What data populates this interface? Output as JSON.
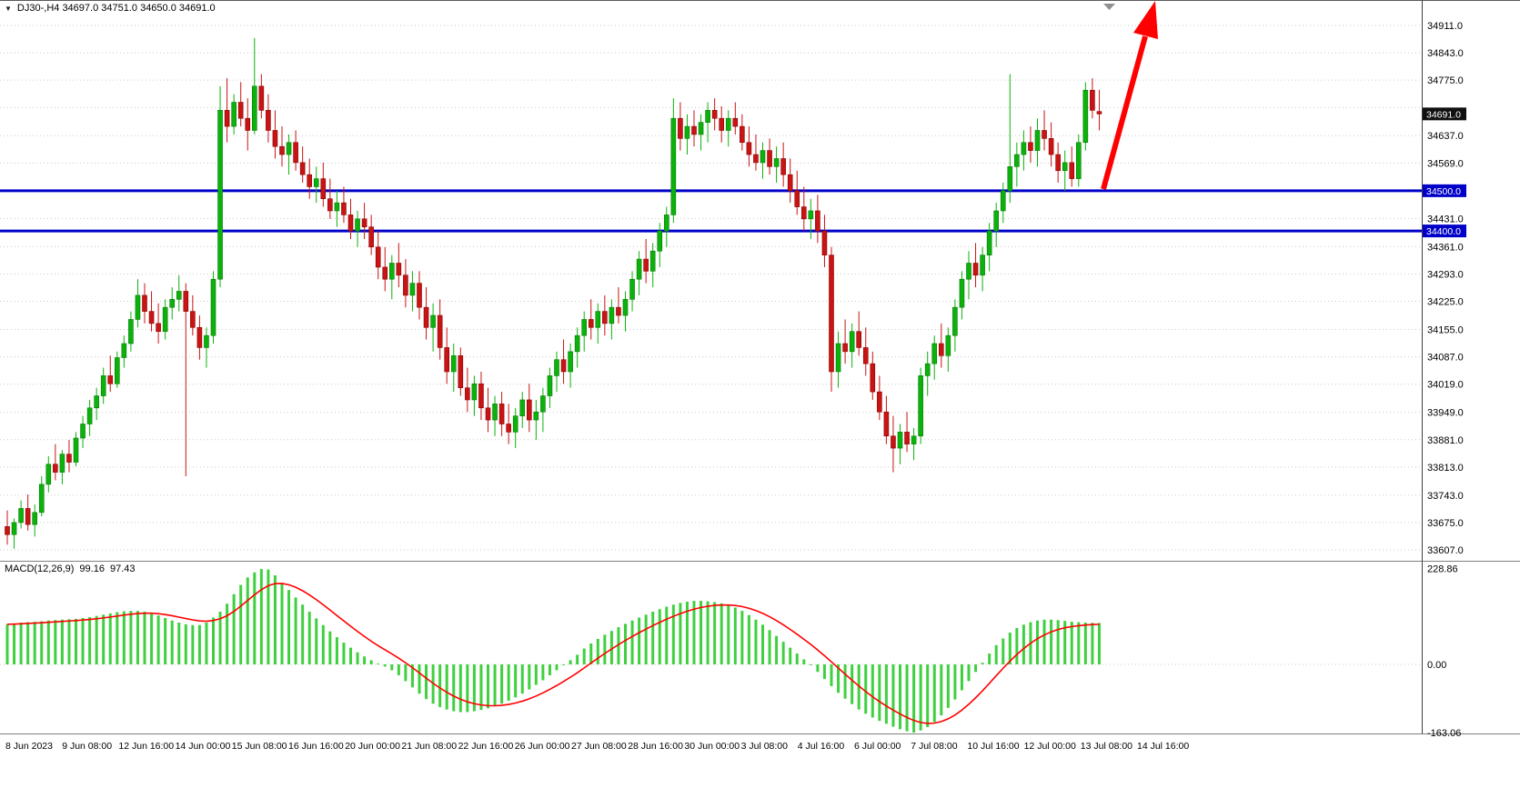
{
  "title": {
    "dropdown": "▼",
    "text": "DJ30-,H4 34697.0 34751.0 34650.0 34691.0"
  },
  "colors": {
    "bull": "#0CB20C",
    "bull_dark": "#067806",
    "bear": "#C81414",
    "bear_dark": "#8B0000",
    "hist": "#3FD03F",
    "signal": "#FF0000",
    "hline": "#0000C8",
    "grid": "#C9C9C9",
    "tag_current_bg": "#101010",
    "arrow": "#FF0000",
    "axis_text": "#000000",
    "separator": "#808080"
  },
  "chart_data": {
    "type": "candlestick",
    "symbol": "DJ30-",
    "timeframe": "H4",
    "ohlc_current": {
      "open": "34697.0",
      "high": "34751.0",
      "low": "34650.0",
      "close": "34691.0"
    },
    "price_axis": {
      "labels": [
        34911,
        34843,
        34775,
        34637,
        34569,
        34431,
        34361,
        34293,
        34225,
        34155,
        34087,
        34019,
        33949,
        33881,
        33813,
        33743,
        33675,
        33607
      ],
      "grid_levels": [
        34911,
        34843,
        34775,
        34707,
        34637,
        34569,
        34431,
        34361,
        34293,
        34225,
        34155,
        34087,
        34019,
        33949,
        33881,
        33813,
        33743,
        33675,
        33607
      ],
      "current_price": 34691,
      "current_tag": "34691.0"
    },
    "hlines": [
      {
        "price": 34500,
        "label": "34500.0"
      },
      {
        "price": 34400,
        "label": "34400.0"
      }
    ],
    "time_axis": [
      "8 Jun 2023",
      "9 Jun 08:00",
      "12 Jun 16:00",
      "14 Jun 00:00",
      "15 Jun 08:00",
      "16 Jun 16:00",
      "20 Jun 00:00",
      "21 Jun 08:00",
      "22 Jun 16:00",
      "26 Jun 00:00",
      "27 Jun 08:00",
      "28 Jun 16:00",
      "30 Jun 00:00",
      "3 Jul 08:00",
      "4 Jul 16:00",
      "6 Jul 00:00",
      "7 Jul 08:00",
      "10 Jul 16:00",
      "12 Jul 00:00",
      "13 Jul 08:00",
      "14 Jul 16:00"
    ],
    "candles": [
      [
        33665,
        33705,
        33620,
        33645
      ],
      [
        33645,
        33685,
        33610,
        33675
      ],
      [
        33675,
        33730,
        33660,
        33710
      ],
      [
        33710,
        33745,
        33655,
        33670
      ],
      [
        33670,
        33720,
        33640,
        33700
      ],
      [
        33700,
        33790,
        33690,
        33770
      ],
      [
        33770,
        33840,
        33750,
        33820
      ],
      [
        33820,
        33870,
        33780,
        33800
      ],
      [
        33800,
        33855,
        33770,
        33845
      ],
      [
        33845,
        33880,
        33800,
        33825
      ],
      [
        33825,
        33900,
        33815,
        33885
      ],
      [
        33885,
        33940,
        33860,
        33920
      ],
      [
        33920,
        33980,
        33890,
        33960
      ],
      [
        33960,
        34010,
        33930,
        33990
      ],
      [
        33990,
        34060,
        33970,
        34040
      ],
      [
        34040,
        34090,
        34000,
        34020
      ],
      [
        34020,
        34100,
        34010,
        34085
      ],
      [
        34085,
        34140,
        34060,
        34120
      ],
      [
        34120,
        34200,
        34100,
        34180
      ],
      [
        34180,
        34280,
        34160,
        34240
      ],
      [
        34240,
        34270,
        34170,
        34200
      ],
      [
        34200,
        34250,
        34150,
        34170
      ],
      [
        34170,
        34220,
        34120,
        34150
      ],
      [
        34150,
        34230,
        34130,
        34210
      ],
      [
        34210,
        34260,
        34180,
        34230
      ],
      [
        34230,
        34290,
        34200,
        34250
      ],
      [
        34250,
        34270,
        33790,
        34200
      ],
      [
        34200,
        34240,
        34140,
        34160
      ],
      [
        34160,
        34190,
        34080,
        34110
      ],
      [
        34110,
        34160,
        34060,
        34140
      ],
      [
        34140,
        34300,
        34120,
        34280
      ],
      [
        34280,
        34760,
        34260,
        34700
      ],
      [
        34700,
        34780,
        34620,
        34660
      ],
      [
        34660,
        34740,
        34640,
        34720
      ],
      [
        34720,
        34770,
        34660,
        34680
      ],
      [
        34680,
        34730,
        34600,
        34650
      ],
      [
        34650,
        34880,
        34640,
        34760
      ],
      [
        34760,
        34790,
        34680,
        34700
      ],
      [
        34700,
        34740,
        34620,
        34650
      ],
      [
        34650,
        34700,
        34580,
        34610
      ],
      [
        34610,
        34660,
        34560,
        34590
      ],
      [
        34590,
        34640,
        34540,
        34620
      ],
      [
        34620,
        34650,
        34550,
        34570
      ],
      [
        34570,
        34610,
        34520,
        34540
      ],
      [
        34540,
        34580,
        34480,
        34510
      ],
      [
        34510,
        34560,
        34470,
        34530
      ],
      [
        34530,
        34570,
        34460,
        34480
      ],
      [
        34480,
        34530,
        34430,
        34450
      ],
      [
        34450,
        34500,
        34410,
        34470
      ],
      [
        34470,
        34510,
        34420,
        34440
      ],
      [
        34440,
        34480,
        34380,
        34400
      ],
      [
        34400,
        34450,
        34360,
        34430
      ],
      [
        34430,
        34470,
        34380,
        34410
      ],
      [
        34410,
        34440,
        34340,
        34360
      ],
      [
        34360,
        34400,
        34280,
        34310
      ],
      [
        34310,
        34360,
        34250,
        34280
      ],
      [
        34280,
        34340,
        34230,
        34320
      ],
      [
        34320,
        34370,
        34260,
        34290
      ],
      [
        34290,
        34330,
        34210,
        34240
      ],
      [
        34240,
        34300,
        34200,
        34270
      ],
      [
        34270,
        34300,
        34180,
        34210
      ],
      [
        34210,
        34260,
        34130,
        34160
      ],
      [
        34160,
        34220,
        34100,
        34190
      ],
      [
        34190,
        34230,
        34080,
        34110
      ],
      [
        34110,
        34160,
        34020,
        34050
      ],
      [
        34050,
        34120,
        34000,
        34090
      ],
      [
        34090,
        34110,
        33990,
        34010
      ],
      [
        34010,
        34060,
        33950,
        33980
      ],
      [
        33980,
        34040,
        33940,
        34020
      ],
      [
        34020,
        34050,
        33930,
        33960
      ],
      [
        33960,
        34010,
        33900,
        33930
      ],
      [
        33930,
        33990,
        33890,
        33970
      ],
      [
        33970,
        34000,
        33890,
        33920
      ],
      [
        33920,
        33970,
        33870,
        33900
      ],
      [
        33900,
        33960,
        33860,
        33940
      ],
      [
        33940,
        34000,
        33910,
        33980
      ],
      [
        33980,
        34020,
        33900,
        33930
      ],
      [
        33930,
        33980,
        33880,
        33950
      ],
      [
        33950,
        34010,
        33900,
        33990
      ],
      [
        33990,
        34060,
        33960,
        34040
      ],
      [
        34040,
        34100,
        34000,
        34080
      ],
      [
        34080,
        34130,
        34020,
        34050
      ],
      [
        34050,
        34120,
        34010,
        34100
      ],
      [
        34100,
        34160,
        34060,
        34140
      ],
      [
        34140,
        34200,
        34100,
        34180
      ],
      [
        34180,
        34230,
        34130,
        34160
      ],
      [
        34160,
        34220,
        34120,
        34200
      ],
      [
        34200,
        34240,
        34140,
        34170
      ],
      [
        34170,
        34230,
        34130,
        34210
      ],
      [
        34210,
        34260,
        34170,
        34190
      ],
      [
        34190,
        34250,
        34150,
        34230
      ],
      [
        34230,
        34300,
        34200,
        34280
      ],
      [
        34280,
        34350,
        34240,
        34330
      ],
      [
        34330,
        34380,
        34270,
        34300
      ],
      [
        34300,
        34370,
        34260,
        34350
      ],
      [
        34350,
        34420,
        34310,
        34400
      ],
      [
        34400,
        34460,
        34360,
        34440
      ],
      [
        34440,
        34730,
        34420,
        34680
      ],
      [
        34680,
        34720,
        34600,
        34630
      ],
      [
        34630,
        34690,
        34590,
        34660
      ],
      [
        34660,
        34700,
        34610,
        34640
      ],
      [
        34640,
        34690,
        34600,
        34670
      ],
      [
        34670,
        34720,
        34620,
        34700
      ],
      [
        34700,
        34730,
        34650,
        34680
      ],
      [
        34680,
        34710,
        34620,
        34650
      ],
      [
        34650,
        34700,
        34610,
        34680
      ],
      [
        34680,
        34720,
        34640,
        34660
      ],
      [
        34660,
        34690,
        34600,
        34620
      ],
      [
        34620,
        34660,
        34560,
        34590
      ],
      [
        34590,
        34640,
        34550,
        34570
      ],
      [
        34570,
        34620,
        34530,
        34600
      ],
      [
        34600,
        34630,
        34540,
        34560
      ],
      [
        34560,
        34610,
        34520,
        34580
      ],
      [
        34580,
        34620,
        34510,
        34540
      ],
      [
        34540,
        34580,
        34470,
        34500
      ],
      [
        34500,
        34550,
        34440,
        34460
      ],
      [
        34460,
        34510,
        34400,
        34430
      ],
      [
        34430,
        34480,
        34380,
        34450
      ],
      [
        34450,
        34490,
        34370,
        34400
      ],
      [
        34400,
        34440,
        34310,
        34340
      ],
      [
        34340,
        34360,
        34000,
        34050
      ],
      [
        34050,
        34150,
        34010,
        34120
      ],
      [
        34120,
        34180,
        34070,
        34100
      ],
      [
        34100,
        34170,
        34060,
        34150
      ],
      [
        34150,
        34200,
        34090,
        34110
      ],
      [
        34110,
        34160,
        34040,
        34070
      ],
      [
        34070,
        34100,
        33980,
        34000
      ],
      [
        34000,
        34040,
        33930,
        33950
      ],
      [
        33950,
        33990,
        33870,
        33890
      ],
      [
        33890,
        33940,
        33800,
        33860
      ],
      [
        33860,
        33920,
        33820,
        33900
      ],
      [
        33900,
        33950,
        33850,
        33870
      ],
      [
        33870,
        33910,
        33830,
        33890
      ],
      [
        33890,
        34060,
        33870,
        34040
      ],
      [
        34040,
        34100,
        33990,
        34070
      ],
      [
        34070,
        34140,
        34030,
        34120
      ],
      [
        34120,
        34170,
        34060,
        34090
      ],
      [
        34090,
        34160,
        34050,
        34140
      ],
      [
        34140,
        34230,
        34100,
        34210
      ],
      [
        34210,
        34300,
        34180,
        34280
      ],
      [
        34280,
        34350,
        34230,
        34320
      ],
      [
        34320,
        34370,
        34260,
        34290
      ],
      [
        34290,
        34360,
        34250,
        34340
      ],
      [
        34340,
        34420,
        34300,
        34400
      ],
      [
        34400,
        34470,
        34360,
        34450
      ],
      [
        34450,
        34520,
        34420,
        34500
      ],
      [
        34500,
        34790,
        34470,
        34560
      ],
      [
        34560,
        34620,
        34510,
        34590
      ],
      [
        34590,
        34650,
        34550,
        34620
      ],
      [
        34620,
        34660,
        34570,
        34600
      ],
      [
        34600,
        34680,
        34560,
        34650
      ],
      [
        34650,
        34700,
        34600,
        34630
      ],
      [
        34630,
        34670,
        34560,
        34590
      ],
      [
        34590,
        34620,
        34520,
        34550
      ],
      [
        34550,
        34600,
        34500,
        34570
      ],
      [
        34570,
        34610,
        34510,
        34530
      ],
      [
        34530,
        34640,
        34510,
        34620
      ],
      [
        34620,
        34770,
        34600,
        34750
      ],
      [
        34750,
        34780,
        34680,
        34700
      ],
      [
        34697,
        34751,
        34650,
        34691
      ]
    ],
    "macd": {
      "name": "MACD(12,26,9)",
      "main": "99.16",
      "signal": "97.43",
      "scale": [
        "228.86",
        "0.00",
        "-163.06"
      ],
      "scale_values": [
        228.86,
        0,
        -163.06
      ],
      "histogram": [
        96,
        98,
        100,
        101,
        102,
        103,
        105,
        106,
        107,
        108,
        109,
        111,
        113,
        116,
        119,
        122,
        125,
        127,
        128,
        128,
        126,
        122,
        117,
        111,
        105,
        100,
        96,
        94,
        94,
        100,
        112,
        126,
        145,
        168,
        190,
        208,
        220,
        228,
        227,
        213,
        195,
        178,
        160,
        143,
        126,
        110,
        94,
        79,
        65,
        52,
        40,
        29,
        19,
        10,
        2,
        -5,
        -14,
        -26,
        -40,
        -55,
        -70,
        -83,
        -94,
        -102,
        -108,
        -112,
        -114,
        -114,
        -112,
        -109,
        -105,
        -100,
        -94,
        -87,
        -79,
        -70,
        -60,
        -49,
        -38,
        -26,
        -14,
        -2,
        10,
        23,
        38,
        50,
        61,
        71,
        80,
        89,
        97,
        105,
        112,
        119,
        126,
        132,
        138,
        143,
        147,
        150,
        152,
        152,
        151,
        149,
        146,
        142,
        136,
        128,
        118,
        107,
        95,
        82,
        68,
        54,
        40,
        26,
        12,
        -2,
        -18,
        -35,
        -52,
        -68,
        -82,
        -95,
        -108,
        -118,
        -127,
        -135,
        -142,
        -149,
        -155,
        -160,
        -163,
        -158,
        -150,
        -138,
        -122,
        -104,
        -84,
        -62,
        -40,
        -18,
        4,
        26,
        46,
        62,
        76,
        87,
        95,
        101,
        105,
        107,
        107,
        106,
        104,
        102,
        101,
        100,
        99.5,
        99.16
      ]
    },
    "annotation": {
      "type": "arrow-up",
      "color": "#FF0000",
      "from": [
        1213,
        208
      ],
      "base": [
        1259,
        40
      ],
      "tip": [
        1270,
        1
      ],
      "w1": [
        1273,
        43
      ],
      "w2": [
        1246,
        36
      ]
    }
  }
}
